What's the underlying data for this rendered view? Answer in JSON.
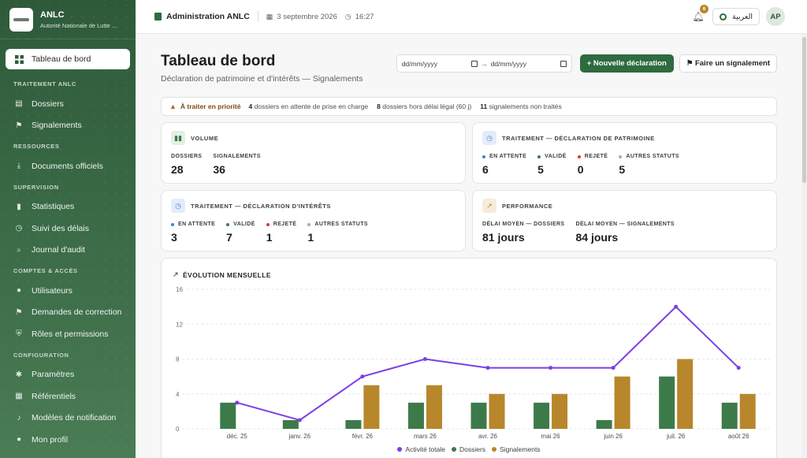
{
  "brand": {
    "name": "ANLC",
    "subtitle": "Autorité Nationale de Lutte ..."
  },
  "sidebar": {
    "active": {
      "label": "Tableau de bord",
      "icon": "grid-icon"
    },
    "sections": [
      {
        "title": "TRAITEMENT ANLC",
        "items": [
          {
            "label": "Dossiers",
            "icon": "document-icon"
          },
          {
            "label": "Signalements",
            "icon": "flag-icon"
          }
        ]
      },
      {
        "title": "RESSOURCES",
        "items": [
          {
            "label": "Documents officiels",
            "icon": "download-icon"
          }
        ]
      },
      {
        "title": "SUPERVISION",
        "items": [
          {
            "label": "Statistiques",
            "icon": "bar-chart-icon"
          },
          {
            "label": "Suivi des délais",
            "icon": "clock-icon"
          },
          {
            "label": "Journal d'audit",
            "icon": "search-icon"
          }
        ]
      },
      {
        "title": "COMPTES & ACCÈS",
        "items": [
          {
            "label": "Utilisateurs",
            "icon": "user-icon"
          },
          {
            "label": "Demandes de correction",
            "icon": "flag-icon"
          },
          {
            "label": "Rôles et permissions",
            "icon": "shield-icon"
          }
        ]
      },
      {
        "title": "CONFIGURATION",
        "items": [
          {
            "label": "Paramètres",
            "icon": "gear-icon"
          },
          {
            "label": "Référentiels",
            "icon": "grid-icon"
          },
          {
            "label": "Modèles de notification",
            "icon": "bell-icon"
          },
          {
            "label": "Mon profil",
            "icon": "user-icon"
          }
        ]
      }
    ]
  },
  "header": {
    "org": "Administration ANLC",
    "date": "3 septembre 2026",
    "time": "16:27",
    "notif_count": "6",
    "lang": "العربية",
    "avatar": "AP"
  },
  "page": {
    "title": "Tableau de bord",
    "subtitle": "Déclaration de patrimoine et d'intérêts — Signalements",
    "date_from_placeholder": "dd/mm/yyyy",
    "date_to_placeholder": "dd/mm/yyyy",
    "new_btn": "+ Nouvelle déclaration",
    "report_btn": "⚑ Faire un signalement"
  },
  "alert": {
    "label": "À traiter en priorité",
    "items": [
      {
        "count": "4",
        "text": "dossiers en attente de prise en charge"
      },
      {
        "count": "8",
        "text": "dossiers hors délai légal (60 j)"
      },
      {
        "count": "11",
        "text": "signalements non traités"
      }
    ]
  },
  "cards": {
    "volume": {
      "title": "VOLUME",
      "stats": [
        {
          "label": "DOSSIERS",
          "value": "28"
        },
        {
          "label": "SIGNALEMENTS",
          "value": "36"
        }
      ]
    },
    "patrimoine": {
      "title": "TRAITEMENT — DÉCLARATION DE PATRIMOINE",
      "stats": [
        {
          "label": "EN ATTENTE",
          "value": "6",
          "color": "#4a7bd4"
        },
        {
          "label": "VALIDÉ",
          "value": "5",
          "color": "#3d7a4a"
        },
        {
          "label": "REJETÉ",
          "value": "0",
          "color": "#d43a3a"
        },
        {
          "label": "AUTRES STATUTS",
          "value": "5",
          "color": "#a9adb0"
        }
      ]
    },
    "interets": {
      "title": "TRAITEMENT — DÉCLARATION D'INTÉRÊTS",
      "stats": [
        {
          "label": "EN ATTENTE",
          "value": "3",
          "color": "#4a7bd4"
        },
        {
          "label": "VALIDÉ",
          "value": "7",
          "color": "#3d7a4a"
        },
        {
          "label": "REJETÉ",
          "value": "1",
          "color": "#d43a3a"
        },
        {
          "label": "AUTRES STATUTS",
          "value": "1",
          "color": "#a9adb0"
        }
      ]
    },
    "performance": {
      "title": "PERFORMANCE",
      "stats": [
        {
          "label": "DÉLAI MOYEN — DOSSIERS",
          "value": "81 jours"
        },
        {
          "label": "DÉLAI MOYEN — SIGNALEMENTS",
          "value": "84 jours"
        }
      ]
    }
  },
  "chart_data": {
    "type": "bar",
    "title": "ÉVOLUTION MENSUELLE",
    "categories": [
      "déc. 25",
      "janv. 26",
      "févr. 26",
      "mars 26",
      "avr. 26",
      "mai 26",
      "juin 26",
      "juil. 26",
      "août 26"
    ],
    "series": [
      {
        "name": "Activité totale",
        "type": "line",
        "color": "#7b3fe4",
        "values": [
          3,
          1,
          6,
          8,
          7,
          7,
          7,
          14,
          7
        ]
      },
      {
        "name": "Dossiers",
        "type": "bar",
        "color": "#3d7a4a",
        "values": [
          3,
          1,
          1,
          3,
          3,
          3,
          1,
          6,
          3
        ]
      },
      {
        "name": "Signalements",
        "type": "bar",
        "color": "#b8862b",
        "values": [
          0,
          0,
          5,
          5,
          4,
          4,
          6,
          8,
          4
        ]
      }
    ],
    "y_ticks": [
      "0",
      "4",
      "8",
      "12",
      "16"
    ],
    "ylim": [
      0,
      16
    ],
    "grid": true,
    "legend": "bottom"
  }
}
